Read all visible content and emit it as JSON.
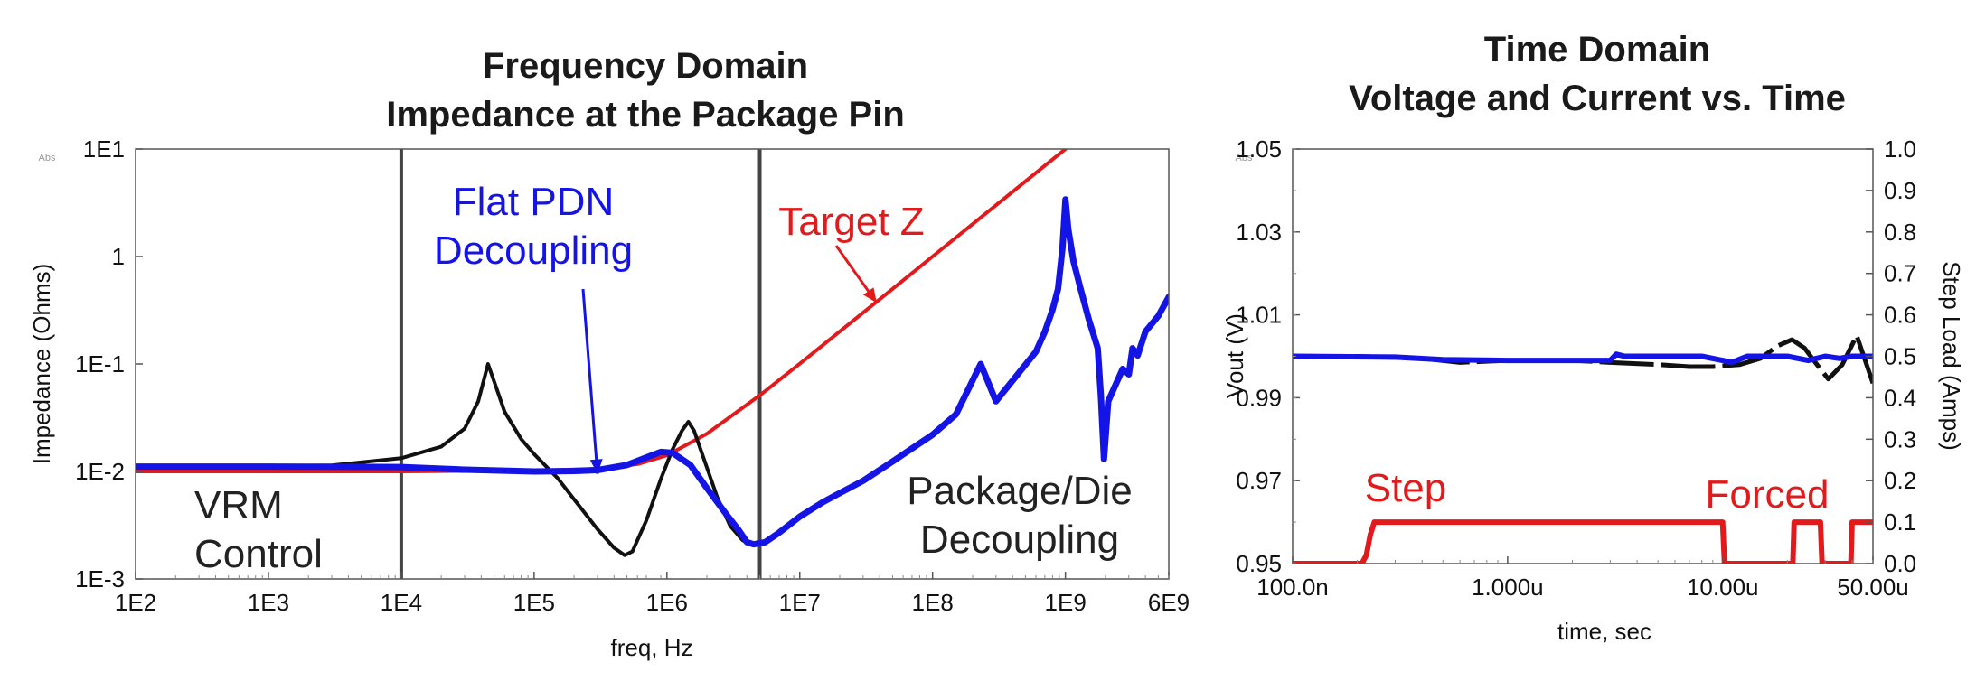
{
  "chart_data": [
    {
      "type": "line",
      "title": [
        "Frequency Domain",
        "Impedance at the Package Pin"
      ],
      "xlabel": "freq, Hz",
      "ylabel": "Impedance (Ohms)",
      "x_scale": "log",
      "y_scale": "log",
      "xlim": [
        100,
        6000000000
      ],
      "ylim": [
        0.001,
        10
      ],
      "x_ticks": [
        {
          "value": 100,
          "label": "1E2"
        },
        {
          "value": 1000,
          "label": "1E3"
        },
        {
          "value": 10000,
          "label": "1E4"
        },
        {
          "value": 100000,
          "label": "1E5"
        },
        {
          "value": 1000000,
          "label": "1E6"
        },
        {
          "value": 10000000,
          "label": "1E7"
        },
        {
          "value": 100000000,
          "label": "1E8"
        },
        {
          "value": 1000000000,
          "label": "1E9"
        },
        {
          "value": 6000000000,
          "label": "6E9"
        }
      ],
      "y_ticks": [
        {
          "value": 10,
          "label": "1E1"
        },
        {
          "value": 1,
          "label": "1"
        },
        {
          "value": 0.1,
          "label": "1E-1"
        },
        {
          "value": 0.01,
          "label": "1E-2"
        },
        {
          "value": 0.001,
          "label": "1E-3"
        }
      ],
      "corner_label": "Abs",
      "vertical_lines": [
        10000,
        5000000
      ],
      "series": [
        {
          "color": "#e31a1c",
          "x": [
            100,
            10000,
            100000,
            300000,
            600000,
            1000000,
            2000000,
            5000000,
            10000000,
            50000000,
            100000000,
            500000000,
            1000000000,
            3200000000
          ],
          "y": [
            0.01,
            0.01,
            0.0102,
            0.0106,
            0.0117,
            0.0141,
            0.0224,
            0.051,
            0.1005,
            0.5,
            1.0,
            5.0,
            10.0,
            32.0
          ]
        },
        {
          "color": "#111111",
          "x": [
            100,
            3000,
            10000,
            20000,
            30000,
            38000,
            45000,
            52000,
            60000,
            80000,
            100000,
            150000,
            200000,
            300000,
            400000,
            480000,
            550000,
            700000,
            900000,
            1100000,
            1300000,
            1450000,
            1600000,
            1900000,
            2400000,
            3000000,
            3700000,
            4200000
          ],
          "y": [
            0.011,
            0.0114,
            0.0133,
            0.017,
            0.025,
            0.045,
            0.1,
            0.06,
            0.036,
            0.02,
            0.0145,
            0.0087,
            0.0055,
            0.0029,
            0.00195,
            0.00166,
            0.0018,
            0.0035,
            0.0085,
            0.016,
            0.024,
            0.029,
            0.024,
            0.013,
            0.0057,
            0.0031,
            0.0023,
            0.0021
          ]
        },
        {
          "color": "#1414e6",
          "x": [
            100,
            1000,
            10000,
            30000,
            100000,
            200000,
            300000,
            500000,
            700000,
            900000,
            1100000,
            1500000,
            2000000,
            2800000,
            3500000,
            4000000,
            4500000,
            5500000,
            7000000,
            10000000,
            15000000,
            20000000,
            30000000,
            50000000,
            100000000,
            150000000,
            175000000,
            200000000,
            230000000,
            300000000,
            400000000,
            600000000,
            700000000,
            800000000,
            880000000,
            950000000,
            1000000000,
            1050000000,
            1150000000,
            1300000000,
            1500000000,
            1750000000,
            1850000000,
            1950000000,
            2100000000,
            2400000000,
            2700000000,
            3000000000,
            3200000000,
            3500000000,
            4000000000,
            5000000000,
            6000000000
          ],
          "y": [
            0.0111,
            0.0111,
            0.011,
            0.0104,
            0.01,
            0.0101,
            0.0103,
            0.0115,
            0.0135,
            0.0152,
            0.0149,
            0.0115,
            0.007,
            0.004,
            0.0028,
            0.0022,
            0.0021,
            0.0022,
            0.0027,
            0.0038,
            0.0052,
            0.0063,
            0.0082,
            0.0124,
            0.022,
            0.034,
            0.05,
            0.07,
            0.1,
            0.045,
            0.07,
            0.13,
            0.2,
            0.32,
            0.5,
            1.2,
            3.4,
            1.8,
            0.9,
            0.5,
            0.26,
            0.14,
            0.05,
            0.013,
            0.045,
            0.065,
            0.09,
            0.08,
            0.14,
            0.12,
            0.2,
            0.28,
            0.42
          ]
        }
      ],
      "annotations": [
        {
          "text": [
            "VRM",
            "Control"
          ],
          "color": "#222222"
        },
        {
          "text": [
            "Flat PDN",
            "Decoupling"
          ],
          "color": "#1414e6",
          "arrow_to": [
            300000,
            0.0095
          ]
        },
        {
          "text": [
            "Target Z"
          ],
          "color": "#e31a1c",
          "arrow_to": [
            38000000,
            0.37
          ]
        },
        {
          "text": [
            "Package/Die",
            "Decoupling"
          ],
          "color": "#222222"
        }
      ]
    },
    {
      "type": "line",
      "title": [
        "Time Domain",
        "Voltage and Current vs. Time"
      ],
      "xlabel": "time, sec",
      "ylabel": "Vout (V)",
      "y2label": "Step Load (Amps)",
      "x_scale": "log",
      "xlim": [
        1e-07,
        5e-05
      ],
      "ylim": [
        0.95,
        1.05
      ],
      "y2lim": [
        0.0,
        1.0
      ],
      "x_ticks": [
        {
          "value": 1e-07,
          "label": "100.0n"
        },
        {
          "value": 1e-06,
          "label": "1.000u"
        },
        {
          "value": 1e-05,
          "label": "10.00u"
        },
        {
          "value": 5e-05,
          "label": "50.00u"
        }
      ],
      "y_ticks": [
        {
          "value": 1.05,
          "label": "1.05"
        },
        {
          "value": 1.03,
          "label": "1.03"
        },
        {
          "value": 1.01,
          "label": "1.01"
        },
        {
          "value": 0.99,
          "label": "0.99"
        },
        {
          "value": 0.97,
          "label": "0.97"
        },
        {
          "value": 0.95,
          "label": "0.95"
        }
      ],
      "y2_ticks": [
        "1.0",
        "0.9",
        "0.8",
        "0.7",
        "0.6",
        "0.5",
        "0.4",
        "0.3",
        "0.2",
        "0.1",
        "0.0"
      ],
      "corner_label": "Abs",
      "series": [
        {
          "color": "#111111",
          "axis": "left",
          "dashed": true,
          "x": [
            1e-07,
            2e-07,
            4e-07,
            6e-07,
            1e-06,
            2e-06,
            3e-06,
            5e-06,
            7e-06,
            9e-06,
            1.2e-05,
            1.5e-05,
            1.8e-05,
            2.1e-05,
            2.4e-05,
            2.7e-05,
            3.1e-05,
            3.6e-05,
            4.2e-05,
            5e-05
          ],
          "y": [
            1.0,
            1.0,
            0.9995,
            0.9985,
            0.999,
            0.999,
            0.9985,
            0.998,
            0.9975,
            0.9975,
            0.998,
            0.9995,
            1.0025,
            1.004,
            1.002,
            0.9985,
            0.9945,
            0.998,
            1.005,
            0.9935
          ]
        },
        {
          "color": "#1414e6",
          "axis": "left",
          "x": [
            1e-07,
            3e-07,
            5e-07,
            1e-06,
            2e-06,
            3e-06,
            3.2e-06,
            3.5e-06,
            5e-06,
            8e-06,
            1e-05,
            1.1e-05,
            1.3e-05,
            1.5e-05,
            2e-05,
            2.5e-05,
            3e-05,
            3.5e-05,
            4e-05,
            5e-05
          ],
          "y": [
            1.0,
            0.9998,
            0.9992,
            0.999,
            0.999,
            0.999,
            1.0005,
            1.0,
            1.0,
            1.0,
            0.999,
            0.9985,
            1.0,
            1.0,
            1.0,
            0.999,
            1.0,
            0.9995,
            1.0,
            1.0
          ]
        },
        {
          "color": "#e31a1c",
          "axis": "right",
          "x": [
            1e-07,
            2.1e-07,
            2.2e-07,
            2.3e-07,
            2.4e-07,
            1e-05,
            1.02e-05,
            2.12e-05,
            2.15e-05,
            2.85e-05,
            2.9e-05,
            3.95e-05,
            4e-05,
            5e-05
          ],
          "y": [
            0.0,
            0.0,
            0.02,
            0.07,
            0.1,
            0.1,
            0.0,
            0.0,
            0.1,
            0.1,
            0.0,
            0.0,
            0.1,
            0.1
          ]
        }
      ],
      "annotations": [
        {
          "text": [
            "Step"
          ],
          "color": "#e31a1c"
        },
        {
          "text": [
            "Forced"
          ],
          "color": "#e31a1c"
        }
      ]
    }
  ]
}
